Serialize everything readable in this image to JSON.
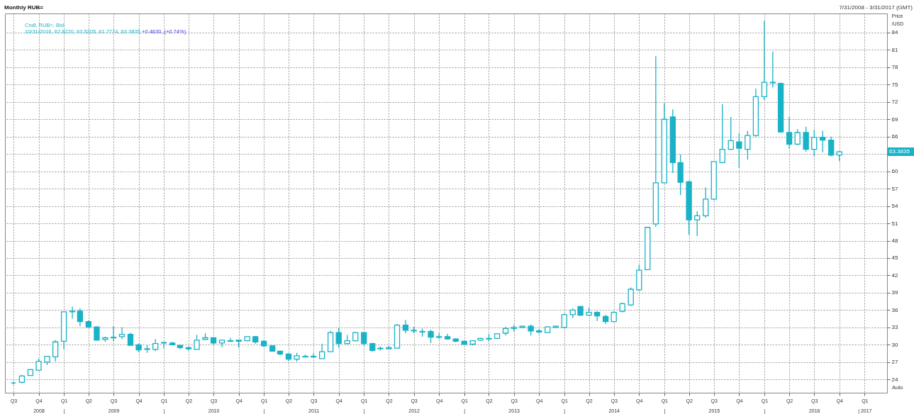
{
  "chart_data": {
    "type": "candlestick",
    "title": "Monthly RUB=",
    "subtitle": "7/31/2008 - 3/31/2017 (GMT)",
    "ylabel": "Price /USD",
    "color": "#19b2c6",
    "grid": true,
    "annotations": [
      "Cndl, RUB=, Bid:",
      "10/31/2016, 62.8220, 63.5205, 61.7774, 63.3835,",
      "+0.4630, (+0.74%)",
      "Auto",
      "63.3835"
    ],
    "xlim": [
      "2008-06-13",
      "2017-03-11"
    ],
    "ylim": [
      21.7,
      87.3
    ],
    "yticks": [
      24,
      27,
      30,
      33,
      36,
      39,
      42,
      45,
      48,
      51,
      54,
      57,
      60,
      {
        "value": 63,
        "label": null
      },
      66,
      69,
      72,
      75,
      78,
      81,
      84
    ],
    "xticks": [
      {
        "value": "2008-07",
        "label": "Q3"
      },
      {
        "value": "2008-10",
        "label": "Q4\n2008"
      },
      {
        "value": "2009-01",
        "label": "Q1\n|"
      },
      {
        "value": "2009-04",
        "label": "Q2"
      },
      {
        "value": "2009-07",
        "label": "Q3\n2009"
      },
      {
        "value": "2009-10",
        "label": "Q4"
      },
      {
        "value": "2010-01",
        "label": "Q1\n|"
      },
      {
        "value": "2010-04",
        "label": "Q2"
      },
      {
        "value": "2010-07",
        "label": "Q3\n2010"
      },
      {
        "value": "2010-10",
        "label": "Q4"
      },
      {
        "value": "2011-01",
        "label": "Q1\n|"
      },
      {
        "value": "2011-04",
        "label": "Q2"
      },
      {
        "value": "2011-07",
        "label": "Q3\n2011"
      },
      {
        "value": "2011-10",
        "label": "Q4"
      },
      {
        "value": "2012-01",
        "label": "Q1\n|"
      },
      {
        "value": "2012-04",
        "label": "Q2"
      },
      {
        "value": "2012-07",
        "label": "Q3\n2012"
      },
      {
        "value": "2012-10",
        "label": "Q4"
      },
      {
        "value": "2013-01",
        "label": "Q1\n|"
      },
      {
        "value": "2013-04",
        "label": "Q2"
      },
      {
        "value": "2013-07",
        "label": "Q3\n2013"
      },
      {
        "value": "2013-10",
        "label": "Q4"
      },
      {
        "value": "2014-01",
        "label": "Q1\n|"
      },
      {
        "value": "2014-04",
        "label": "Q2"
      },
      {
        "value": "2014-07",
        "label": "Q3\n2014"
      },
      {
        "value": "2014-10",
        "label": "Q4"
      },
      {
        "value": "2015-01",
        "label": "Q1\n|"
      },
      {
        "value": "2015-04",
        "label": "Q2"
      },
      {
        "value": "2015-07",
        "label": "Q3\n2015"
      },
      {
        "value": "2015-10",
        "label": "Q4"
      },
      {
        "value": "2016-01",
        "label": "Q1\n|"
      },
      {
        "value": "2016-04",
        "label": "Q2"
      },
      {
        "value": "2016-07",
        "label": "Q3\n2016"
      },
      {
        "value": "2016-10",
        "label": "Q4"
      },
      {
        "value": "2017-01",
        "label": "Q1\n| 2017"
      }
    ],
    "x": [
      "2008-07",
      "2008-08",
      "2008-09",
      "2008-10",
      "2008-11",
      "2008-12",
      "2009-01",
      "2009-02",
      "2009-03",
      "2009-04",
      "2009-05",
      "2009-06",
      "2009-07",
      "2009-08",
      "2009-09",
      "2009-10",
      "2009-11",
      "2009-12",
      "2010-01",
      "2010-02",
      "2010-03",
      "2010-04",
      "2010-05",
      "2010-06",
      "2010-07",
      "2010-08",
      "2010-09",
      "2010-10",
      "2010-11",
      "2010-12",
      "2011-01",
      "2011-02",
      "2011-03",
      "2011-04",
      "2011-05",
      "2011-06",
      "2011-07",
      "2011-08",
      "2011-09",
      "2011-10",
      "2011-11",
      "2011-12",
      "2012-01",
      "2012-02",
      "2012-03",
      "2012-04",
      "2012-05",
      "2012-06",
      "2012-07",
      "2012-08",
      "2012-09",
      "2012-10",
      "2012-11",
      "2012-12",
      "2013-01",
      "2013-02",
      "2013-03",
      "2013-04",
      "2013-05",
      "2013-06",
      "2013-07",
      "2013-08",
      "2013-09",
      "2013-10",
      "2013-11",
      "2013-12",
      "2014-01",
      "2014-02",
      "2014-03",
      "2014-04",
      "2014-05",
      "2014-06",
      "2014-07",
      "2014-08",
      "2014-09",
      "2014-10",
      "2014-11",
      "2014-12",
      "2015-01",
      "2015-02",
      "2015-03",
      "2015-04",
      "2015-05",
      "2015-06",
      "2015-07",
      "2015-08",
      "2015-09",
      "2015-10",
      "2015-11",
      "2015-12",
      "2016-01",
      "2016-02",
      "2016-03",
      "2016-04",
      "2016-05",
      "2016-06",
      "2016-07",
      "2016-08",
      "2016-09",
      "2016-10"
    ],
    "ohlc": [
      [
        23.4,
        23.6,
        23.1,
        23.4
      ],
      [
        23.5,
        24.8,
        23.3,
        24.6
      ],
      [
        24.7,
        25.8,
        24.7,
        25.7
      ],
      [
        25.6,
        27.6,
        25.6,
        27.1
      ],
      [
        27.0,
        28.0,
        26.5,
        28.0
      ],
      [
        27.9,
        30.8,
        27.1,
        30.5
      ],
      [
        30.6,
        35.8,
        29.2,
        35.7
      ],
      [
        35.7,
        36.6,
        34.5,
        35.8
      ],
      [
        35.8,
        36.3,
        33.2,
        34.0
      ],
      [
        34.0,
        34.2,
        32.9,
        33.1
      ],
      [
        33.1,
        33.1,
        30.8,
        30.8
      ],
      [
        30.9,
        31.4,
        30.5,
        31.2
      ],
      [
        31.2,
        33.2,
        30.6,
        31.3
      ],
      [
        31.4,
        33.0,
        31.0,
        31.8
      ],
      [
        31.8,
        32.1,
        29.9,
        29.9
      ],
      [
        30.0,
        30.2,
        28.7,
        29.1
      ],
      [
        29.2,
        29.9,
        28.6,
        29.3
      ],
      [
        29.2,
        31.0,
        28.9,
        30.2
      ],
      [
        30.3,
        30.4,
        29.4,
        30.4
      ],
      [
        30.3,
        30.5,
        30.0,
        30.0
      ],
      [
        29.9,
        29.9,
        29.2,
        29.5
      ],
      [
        29.5,
        29.6,
        29.0,
        29.3
      ],
      [
        29.2,
        31.7,
        29.2,
        30.8
      ],
      [
        30.9,
        32.0,
        30.8,
        31.2
      ],
      [
        31.2,
        31.3,
        30.0,
        30.3
      ],
      [
        30.3,
        30.9,
        29.6,
        30.8
      ],
      [
        30.6,
        31.2,
        30.5,
        30.7
      ],
      [
        30.8,
        30.9,
        29.5,
        30.6
      ],
      [
        30.7,
        31.4,
        30.6,
        31.4
      ],
      [
        31.4,
        31.5,
        30.2,
        30.5
      ],
      [
        30.6,
        30.8,
        29.6,
        29.8
      ],
      [
        29.8,
        29.9,
        28.9,
        28.9
      ],
      [
        28.9,
        29.0,
        28.2,
        28.4
      ],
      [
        28.4,
        28.5,
        27.2,
        27.5
      ],
      [
        27.5,
        28.6,
        27.1,
        28.1
      ],
      [
        27.9,
        28.3,
        27.8,
        28.0
      ],
      [
        28.0,
        28.5,
        27.7,
        27.9
      ],
      [
        27.6,
        30.2,
        27.6,
        28.8
      ],
      [
        28.8,
        32.4,
        28.8,
        32.1
      ],
      [
        32.1,
        32.9,
        29.5,
        30.2
      ],
      [
        30.2,
        31.7,
        30.1,
        30.7
      ],
      [
        30.7,
        32.2,
        30.6,
        32.1
      ],
      [
        32.1,
        32.2,
        29.9,
        30.2
      ],
      [
        30.2,
        30.3,
        28.8,
        29.0
      ],
      [
        29.4,
        29.7,
        29.0,
        29.3
      ],
      [
        29.3,
        29.8,
        29.2,
        29.5
      ],
      [
        29.4,
        33.6,
        29.3,
        33.4
      ],
      [
        33.4,
        34.3,
        32.0,
        32.5
      ],
      [
        32.5,
        33.1,
        32.0,
        32.4
      ],
      [
        32.3,
        32.8,
        31.4,
        32.2
      ],
      [
        32.3,
        32.6,
        30.3,
        31.3
      ],
      [
        31.3,
        32.0,
        31.0,
        31.4
      ],
      [
        31.4,
        31.9,
        30.9,
        31.0
      ],
      [
        31.0,
        31.1,
        30.4,
        30.6
      ],
      [
        30.6,
        30.7,
        30.0,
        30.1
      ],
      [
        30.1,
        30.8,
        29.9,
        30.7
      ],
      [
        30.8,
        31.2,
        30.7,
        31.1
      ],
      [
        31.0,
        31.9,
        30.5,
        31.1
      ],
      [
        31.1,
        32.0,
        31.0,
        31.9
      ],
      [
        32.0,
        33.1,
        31.6,
        32.8
      ],
      [
        32.8,
        33.4,
        32.3,
        33.0
      ],
      [
        33.0,
        33.2,
        32.9,
        33.2
      ],
      [
        33.2,
        33.5,
        31.6,
        32.4
      ],
      [
        32.4,
        32.7,
        31.9,
        32.2
      ],
      [
        32.1,
        33.2,
        32.0,
        33.1
      ],
      [
        33.0,
        33.3,
        32.9,
        33.2
      ],
      [
        33.0,
        35.4,
        32.9,
        35.2
      ],
      [
        35.2,
        36.3,
        34.6,
        36.0
      ],
      [
        36.6,
        36.7,
        35.0,
        35.1
      ],
      [
        35.1,
        36.4,
        35.0,
        35.6
      ],
      [
        35.6,
        35.8,
        34.1,
        35.0
      ],
      [
        34.9,
        35.2,
        33.6,
        34.0
      ],
      [
        34.0,
        35.8,
        33.9,
        35.6
      ],
      [
        35.8,
        37.3,
        35.6,
        37.1
      ],
      [
        36.9,
        39.9,
        36.7,
        39.6
      ],
      [
        39.5,
        43.8,
        39.3,
        42.9
      ],
      [
        43.0,
        50.4,
        42.9,
        50.3
      ],
      [
        50.9,
        79.9,
        50.4,
        58.0
      ],
      [
        58.0,
        71.8,
        57.9,
        69.0
      ],
      [
        69.4,
        70.7,
        59.7,
        61.5
      ],
      [
        61.5,
        62.9,
        55.9,
        58.1
      ],
      [
        58.2,
        58.4,
        49.0,
        51.6
      ],
      [
        51.6,
        53.1,
        48.8,
        52.3
      ],
      [
        52.3,
        57.2,
        52.0,
        55.2
      ],
      [
        55.2,
        61.7,
        55.0,
        61.7
      ],
      [
        61.5,
        71.6,
        61.4,
        63.8
      ],
      [
        63.8,
        69.4,
        63.7,
        65.3
      ],
      [
        65.1,
        66.6,
        60.6,
        64.0
      ],
      [
        63.8,
        67.0,
        62.0,
        66.2
      ],
      [
        66.2,
        74.3,
        66.0,
        72.9
      ],
      [
        72.9,
        86.0,
        72.3,
        75.4
      ],
      [
        75.4,
        80.7,
        74.5,
        75.3
      ],
      [
        75.2,
        75.3,
        66.7,
        66.8
      ],
      [
        66.7,
        69.4,
        63.9,
        64.7
      ],
      [
        64.7,
        67.3,
        64.5,
        66.7
      ],
      [
        66.7,
        67.7,
        63.4,
        63.8
      ],
      [
        63.8,
        67.2,
        62.6,
        65.9
      ],
      [
        65.9,
        67.0,
        63.3,
        65.4
      ],
      [
        65.4,
        66.0,
        62.6,
        62.8
      ],
      [
        62.822,
        63.5205,
        61.7774,
        63.3835
      ]
    ]
  }
}
